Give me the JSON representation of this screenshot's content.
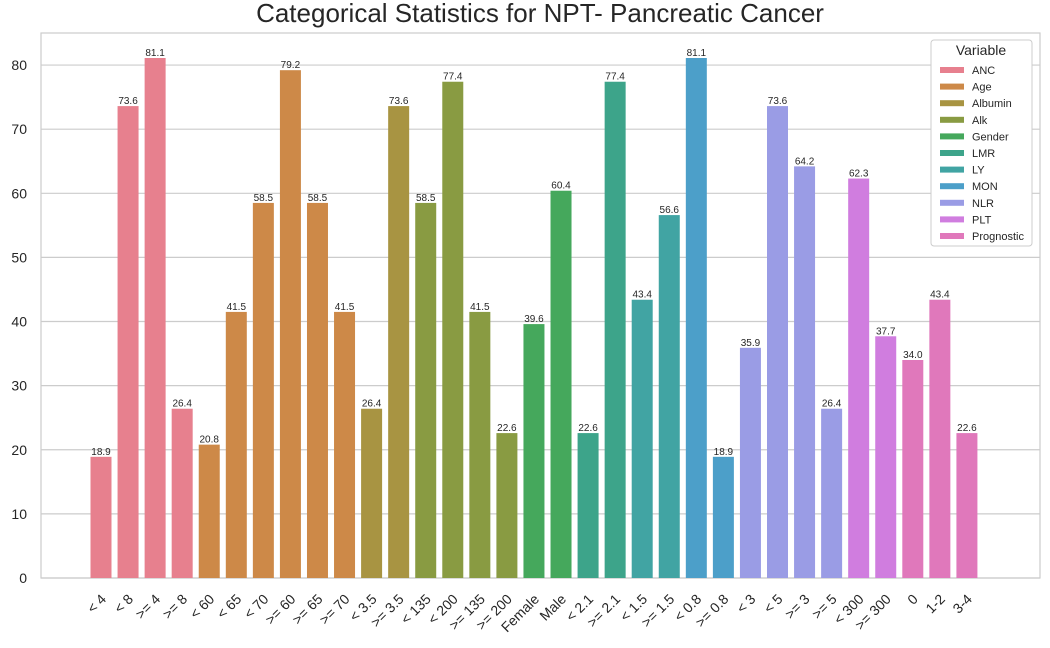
{
  "chart_data": {
    "type": "bar",
    "title": "Categorical Statistics for NPT- Pancreatic Cancer",
    "xlabel": "",
    "ylabel": "",
    "ylim": [
      0,
      85
    ],
    "yticks": [
      0,
      10,
      20,
      30,
      40,
      50,
      60,
      70,
      80
    ],
    "grid": true,
    "legend_position": "top-right",
    "legend_title": "Variable",
    "series": [
      {
        "name": "ANC",
        "color": "#e7808e"
      },
      {
        "name": "Age",
        "color": "#cd8948"
      },
      {
        "name": "Albumin",
        "color": "#a89442"
      },
      {
        "name": "Alk",
        "color": "#899b42"
      },
      {
        "name": "Gender",
        "color": "#45a85c"
      },
      {
        "name": "LMR",
        "color": "#3da48a"
      },
      {
        "name": "LY",
        "color": "#41a4a3"
      },
      {
        "name": "MON",
        "color": "#4c9fc9"
      },
      {
        "name": "NLR",
        "color": "#9a9ce5"
      },
      {
        "name": "PLT",
        "color": "#d07ddf"
      },
      {
        "name": "Prognostic",
        "color": "#e078bb"
      }
    ],
    "bars": [
      {
        "category": "< 4",
        "series": "ANC",
        "value": 18.9,
        "label": "18.9"
      },
      {
        "category": "< 8",
        "series": "ANC",
        "value": 73.6,
        "label": "73.6"
      },
      {
        "category": ">= 4",
        "series": "ANC",
        "value": 81.1,
        "label": "81.1"
      },
      {
        "category": ">= 8",
        "series": "ANC",
        "value": 26.4,
        "label": "26.4"
      },
      {
        "category": "< 60",
        "series": "Age",
        "value": 20.8,
        "label": "20.8"
      },
      {
        "category": "< 65",
        "series": "Age",
        "value": 41.5,
        "label": "41.5"
      },
      {
        "category": "< 70",
        "series": "Age",
        "value": 58.5,
        "label": "58.5"
      },
      {
        "category": ">= 60",
        "series": "Age",
        "value": 79.2,
        "label": "79.2"
      },
      {
        "category": ">= 65",
        "series": "Age",
        "value": 58.5,
        "label": "58.5"
      },
      {
        "category": ">= 70",
        "series": "Age",
        "value": 41.5,
        "label": "41.5"
      },
      {
        "category": "< 3.5",
        "series": "Albumin",
        "value": 26.4,
        "label": "26.4"
      },
      {
        "category": ">= 3.5",
        "series": "Albumin",
        "value": 73.6,
        "label": "73.6"
      },
      {
        "category": "< 135",
        "series": "Alk",
        "value": 58.5,
        "label": "58.5"
      },
      {
        "category": "< 200",
        "series": "Alk",
        "value": 77.4,
        "label": "77.4"
      },
      {
        "category": ">= 135",
        "series": "Alk",
        "value": 41.5,
        "label": "41.5"
      },
      {
        "category": ">= 200",
        "series": "Alk",
        "value": 22.6,
        "label": "22.6"
      },
      {
        "category": "Female",
        "series": "Gender",
        "value": 39.6,
        "label": "39.6"
      },
      {
        "category": "Male",
        "series": "Gender",
        "value": 60.4,
        "label": "60.4"
      },
      {
        "category": "< 2.1",
        "series": "LMR",
        "value": 22.6,
        "label": "22.6"
      },
      {
        "category": ">= 2.1",
        "series": "LMR",
        "value": 77.4,
        "label": "77.4"
      },
      {
        "category": "< 1.5",
        "series": "LY",
        "value": 43.4,
        "label": "43.4"
      },
      {
        "category": ">= 1.5",
        "series": "LY",
        "value": 56.6,
        "label": "56.6"
      },
      {
        "category": "< 0.8",
        "series": "MON",
        "value": 81.1,
        "label": "81.1"
      },
      {
        "category": ">= 0.8",
        "series": "MON",
        "value": 18.9,
        "label": "18.9"
      },
      {
        "category": "< 3",
        "series": "NLR",
        "value": 35.9,
        "label": "35.9"
      },
      {
        "category": "< 5",
        "series": "NLR",
        "value": 73.6,
        "label": "73.6"
      },
      {
        "category": ">= 3",
        "series": "NLR",
        "value": 64.2,
        "label": "64.2"
      },
      {
        "category": ">= 5",
        "series": "NLR",
        "value": 26.4,
        "label": "26.4"
      },
      {
        "category": "< 300",
        "series": "PLT",
        "value": 62.3,
        "label": "62.3"
      },
      {
        "category": ">= 300",
        "series": "PLT",
        "value": 37.7,
        "label": "37.7"
      },
      {
        "category": "0",
        "series": "Prognostic",
        "value": 34.0,
        "label": "34.0"
      },
      {
        "category": "1-2",
        "series": "Prognostic",
        "value": 43.4,
        "label": "43.4"
      },
      {
        "category": "3-4",
        "series": "Prognostic",
        "value": 22.6,
        "label": "22.6"
      }
    ]
  }
}
